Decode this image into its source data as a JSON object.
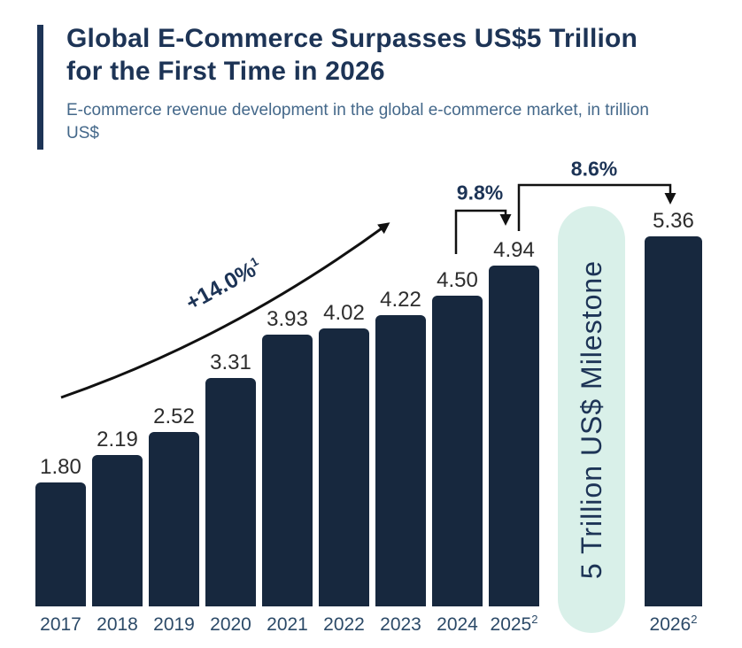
{
  "header": {
    "title": "Global E-Commerce Surpasses US$5 Trillion for the First Time in 2026",
    "subtitle": "E-commerce revenue development in the global e-commerce market, in trillion US$"
  },
  "chart_data": {
    "type": "bar",
    "title": "Global E-Commerce Surpasses US$5 Trillion for the First Time in 2026",
    "subtitle": "E-commerce revenue development in the global e-commerce market, in trillion US$",
    "categories": [
      "2017",
      "2018",
      "2019",
      "2020",
      "2021",
      "2022",
      "2023",
      "2024",
      "2025",
      "2026"
    ],
    "category_superscripts": [
      "",
      "",
      "",
      "",
      "",
      "",
      "",
      "",
      "2",
      "2"
    ],
    "values": [
      1.8,
      2.19,
      2.52,
      3.31,
      3.93,
      4.02,
      4.22,
      4.5,
      4.94,
      5.36
    ],
    "value_labels": [
      "1.80",
      "2.19",
      "2.52",
      "3.31",
      "3.93",
      "4.02",
      "4.22",
      "4.50",
      "4.94",
      "5.36"
    ],
    "xlabel": "",
    "ylabel": "trillion US$",
    "ylim": [
      0,
      5.6
    ],
    "grid": false,
    "value_axis_hidden": true,
    "legend": "none",
    "annotations": {
      "cagr": {
        "text": "+14.0%",
        "sup": "1",
        "span": "2017-2024 trend arrow"
      },
      "growth_2025": "9.8%",
      "growth_2026": "8.6%",
      "milestone_label": "5 Trillion US$ Milestone"
    }
  },
  "colors": {
    "navy": "#17283e",
    "title": "#1d3456",
    "subtitle": "#44688a",
    "year": "#2c4a68",
    "value": "#2d2d2d",
    "band": "#d9f0e9",
    "line": "#111111"
  }
}
